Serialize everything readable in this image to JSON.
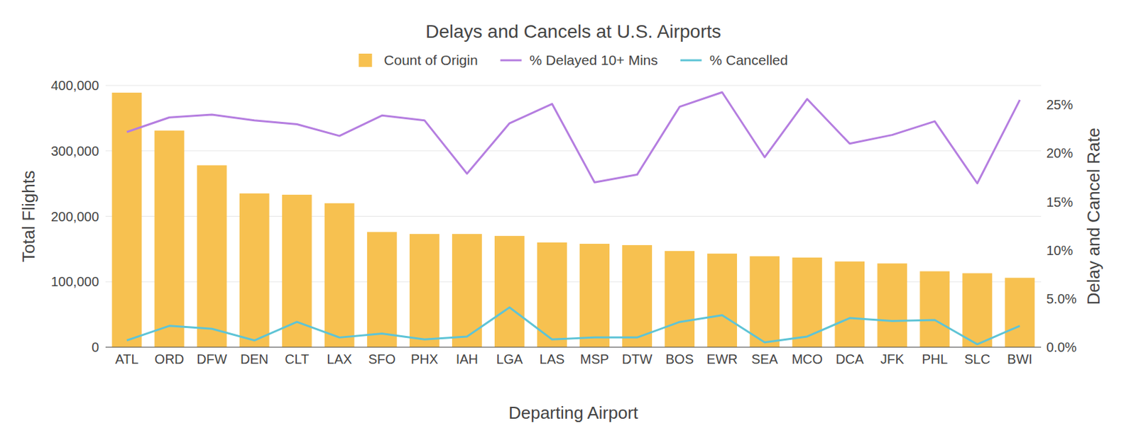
{
  "chart_data": {
    "type": "bar",
    "title": "Delays and Cancels at U.S. Airports",
    "x_label": "Departing Airport",
    "y_label": "Total Flights",
    "y2_label": "Delay and Cancel Rate",
    "categories": [
      "ATL",
      "ORD",
      "DFW",
      "DEN",
      "CLT",
      "LAX",
      "SFO",
      "PHX",
      "IAH",
      "LGA",
      "LAS",
      "MSP",
      "DTW",
      "BOS",
      "EWR",
      "SEA",
      "MCO",
      "DCA",
      "JFK",
      "PHL",
      "SLC",
      "BWI"
    ],
    "ylim": [
      0,
      400000
    ],
    "yticks": [
      0,
      {
        "value": 100000,
        "label": "100,000"
      },
      {
        "value": 200000,
        "label": "200,000"
      },
      {
        "value": 300000,
        "label": "300,000"
      },
      {
        "value": 400000,
        "label": "400,000"
      }
    ],
    "y2lim": [
      0,
      27
    ],
    "y2ticks": [
      {
        "value": 0,
        "label": "0.0%"
      },
      {
        "value": 5,
        "label": "5.0%"
      },
      {
        "value": 10,
        "label": "10%"
      },
      {
        "value": 15,
        "label": "15%"
      },
      {
        "value": 20,
        "label": "20%"
      },
      {
        "value": 25,
        "label": "25%"
      }
    ],
    "grid": true,
    "legend": "top",
    "series": [
      {
        "name": "Count of Origin",
        "type": "bar",
        "color": "#f7c150",
        "values": [
          389000,
          331000,
          278000,
          235000,
          233000,
          220000,
          176000,
          173000,
          173000,
          170000,
          160000,
          158000,
          156000,
          147000,
          143000,
          139000,
          137000,
          131000,
          128000,
          116000,
          113000,
          106000
        ]
      },
      {
        "name": "% Delayed 10+ Mins",
        "type": "line",
        "axis": "y2",
        "color": "#b57ee0",
        "values": [
          22.2,
          23.7,
          24.0,
          23.4,
          23.0,
          21.8,
          23.9,
          23.4,
          17.9,
          23.1,
          25.1,
          17.0,
          17.8,
          24.8,
          26.3,
          19.6,
          25.6,
          21.0,
          21.9,
          23.3,
          16.9,
          25.5
        ]
      },
      {
        "name": "% Cancelled",
        "type": "line",
        "axis": "y2",
        "color": "#5ec4d6",
        "values": [
          0.7,
          2.2,
          1.9,
          0.7,
          2.6,
          1.0,
          1.4,
          0.8,
          1.1,
          4.1,
          0.8,
          1.0,
          1.0,
          2.6,
          3.3,
          0.5,
          1.1,
          3.0,
          2.7,
          2.8,
          0.3,
          2.2
        ]
      }
    ]
  }
}
